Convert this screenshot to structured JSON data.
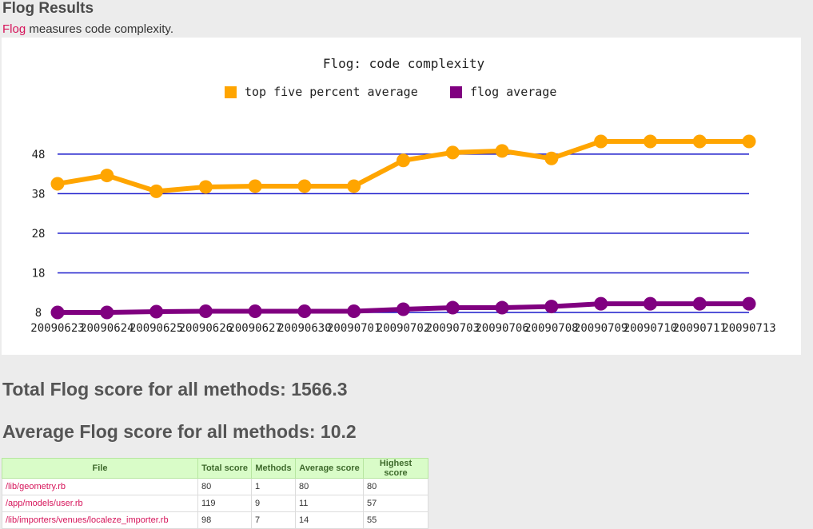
{
  "header": {
    "title": "Flog Results",
    "intro_link": "Flog",
    "intro_text": " measures code complexity."
  },
  "chart_data": {
    "type": "line",
    "title": "Flog: code complexity",
    "categories": [
      "20090623",
      "20090624",
      "20090625",
      "20090626",
      "20090627",
      "20090630",
      "20090701",
      "20090702",
      "20090703",
      "20090706",
      "20090708",
      "20090709",
      "20090710",
      "20090711",
      "20090713"
    ],
    "yticks": [
      8,
      18,
      28,
      38,
      48
    ],
    "ylim": [
      8,
      52
    ],
    "grid": true,
    "legend": "top-center",
    "series": [
      {
        "name": "top five percent average",
        "color": "#ffa500",
        "values": [
          40.5,
          42.6,
          38.6,
          39.7,
          39.9,
          39.9,
          39.9,
          46.4,
          48.4,
          48.8,
          46.9,
          51.2,
          51.2,
          51.2,
          51.2
        ]
      },
      {
        "name": "flog average",
        "color": "#800080",
        "values": [
          8.0,
          8.0,
          8.2,
          8.3,
          8.3,
          8.3,
          8.3,
          8.8,
          9.2,
          9.2,
          9.5,
          10.2,
          10.2,
          10.2,
          10.2
        ]
      }
    ]
  },
  "scores": {
    "total": "Total Flog score for all methods: 1566.3",
    "average": "Average Flog score for all methods: 10.2"
  },
  "table": {
    "headers": [
      "File",
      "Total score",
      "Methods",
      "Average score",
      "Highest score"
    ],
    "rows": [
      {
        "file": "/lib/geometry.rb",
        "total": "80",
        "methods": "1",
        "average": "80",
        "highest": "80"
      },
      {
        "file": "/app/models/user.rb",
        "total": "119",
        "methods": "9",
        "average": "11",
        "highest": "57"
      },
      {
        "file": "/lib/importers/venues/localeze_importer.rb",
        "total": "98",
        "methods": "7",
        "average": "14",
        "highest": "55"
      }
    ]
  }
}
